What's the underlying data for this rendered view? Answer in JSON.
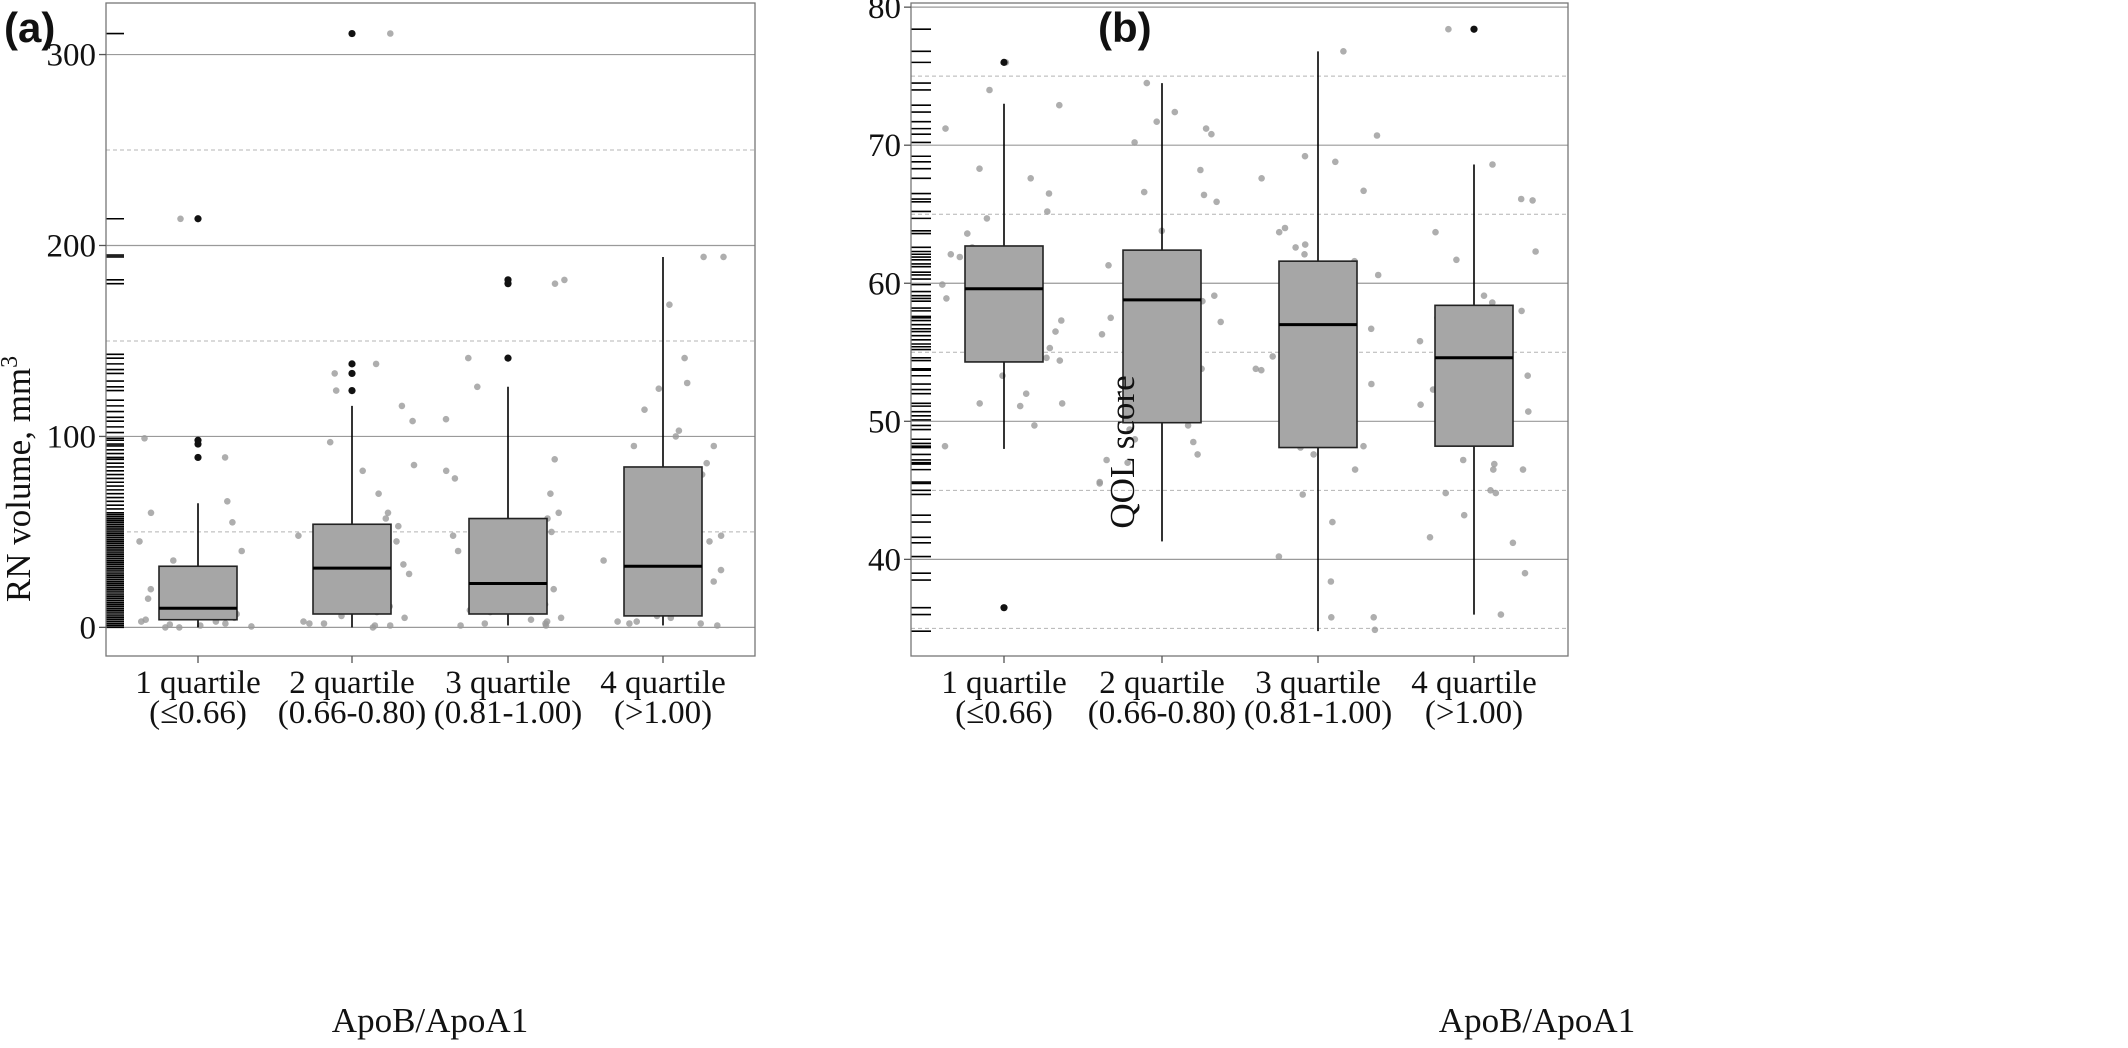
{
  "chart_data": [
    {
      "panel": "(a)",
      "type": "box",
      "title": "",
      "xlabel": "ApoB/ApoA1",
      "ylabel": "RN volume, mm",
      "ylabel_superscript": "3",
      "ylim": [
        -15,
        327
      ],
      "major_ticks": [
        0,
        100,
        200,
        300
      ],
      "minor_gridlines": [
        50,
        150,
        250
      ],
      "grid": true,
      "categories": [
        {
          "line1": "1 quartile",
          "line2": "(≤0.66)"
        },
        {
          "line1": "2 quartile",
          "line2": "(0.66-0.80)"
        },
        {
          "line1": "3 quartile",
          "line2": "(0.81-1.00)"
        },
        {
          "line1": "4 quartile",
          "line2": "(>1.00)"
        }
      ],
      "boxes": [
        {
          "whisker_low": 0,
          "q1": 4,
          "median": 10,
          "q3": 32,
          "whisker_high": 65,
          "outliers": [
            89,
            96,
            98,
            214
          ]
        },
        {
          "whisker_low": 0,
          "q1": 7,
          "median": 31,
          "q3": 54,
          "whisker_high": 116,
          "outliers": [
            124,
            133,
            138,
            311
          ]
        },
        {
          "whisker_low": 1,
          "q1": 7,
          "median": 23,
          "q3": 57,
          "whisker_high": 126,
          "outliers": [
            141,
            180,
            182
          ]
        },
        {
          "whisker_low": 1,
          "q1": 6,
          "median": 32,
          "q3": 84,
          "whisker_high": 194,
          "outliers": []
        }
      ],
      "jitter_points": [
        [
          0,
          1.5,
          0,
          99,
          89,
          40,
          4,
          2,
          15,
          8,
          5,
          12,
          22,
          30,
          1,
          3,
          6,
          9,
          18,
          25,
          60,
          66,
          55,
          45,
          35,
          20,
          10,
          3,
          214,
          0.5,
          7
        ],
        [
          2,
          48,
          57,
          45,
          133,
          124,
          116,
          82,
          30,
          20,
          11,
          8,
          3,
          1,
          0,
          45,
          38,
          28,
          14,
          6,
          2,
          97,
          60,
          85,
          138,
          108,
          70,
          27,
          5,
          1,
          311,
          40,
          18,
          53,
          33
        ],
        [
          2,
          180,
          141,
          126,
          82,
          60,
          45,
          35,
          12,
          8,
          3,
          1,
          88,
          109,
          57,
          48,
          40,
          30,
          22,
          16,
          9,
          5,
          2,
          182,
          78,
          70,
          50,
          20,
          10,
          4,
          1
        ],
        [
          114,
          141,
          100,
          86,
          62,
          40,
          20,
          8,
          3,
          1,
          194,
          169,
          103,
          70,
          48,
          38,
          30,
          24,
          14,
          6,
          2,
          65,
          80,
          95,
          125,
          128,
          194,
          95,
          35,
          5,
          2,
          45,
          3
        ]
      ],
      "rug_values": [
        0,
        1,
        2,
        3,
        4,
        5,
        6,
        7,
        8,
        9,
        10,
        11,
        12,
        13,
        14,
        15,
        16,
        17,
        18,
        19,
        20,
        21,
        22,
        23,
        24,
        25,
        26,
        27,
        28,
        29,
        30,
        31,
        32,
        33,
        34,
        35,
        36,
        37,
        38,
        39,
        40,
        41,
        42,
        43,
        44,
        45,
        46,
        47,
        48,
        49,
        50,
        51,
        52,
        53,
        54,
        55,
        56,
        57,
        58,
        59,
        60,
        62,
        64,
        66,
        68,
        70,
        72,
        74,
        76,
        78,
        80,
        82,
        84,
        86,
        88,
        89,
        91,
        93,
        95,
        96,
        98,
        99,
        102,
        105,
        108,
        110,
        113,
        116,
        119,
        124,
        126,
        129,
        133,
        135,
        138,
        141,
        143,
        180,
        182,
        194,
        195,
        214,
        311
      ]
    },
    {
      "panel": "(b)",
      "type": "box",
      "title": "",
      "xlabel": "ApoB/ApoA1",
      "ylabel": "QOL score",
      "ylim": [
        33,
        80.3
      ],
      "major_ticks": [
        40,
        50,
        60,
        70,
        80
      ],
      "minor_gridlines": [
        35,
        45,
        55,
        65,
        75
      ],
      "grid": true,
      "categories": [
        {
          "line1": "1 quartile",
          "line2": "(≤0.66)"
        },
        {
          "line1": "2 quartile",
          "line2": "(0.66-0.80)"
        },
        {
          "line1": "3 quartile",
          "line2": "(0.81-1.00)"
        },
        {
          "line1": "4 quartile",
          "line2": "(>1.00)"
        }
      ],
      "boxes": [
        {
          "whisker_low": 48,
          "q1": 54.3,
          "median": 59.6,
          "q3": 62.7,
          "whisker_high": 73,
          "outliers": [
            36.5,
            76
          ]
        },
        {
          "whisker_low": 41.3,
          "q1": 49.9,
          "median": 58.8,
          "q3": 62.4,
          "whisker_high": 74.5,
          "outliers": []
        },
        {
          "whisker_low": 34.8,
          "q1": 48.1,
          "median": 57,
          "q3": 61.6,
          "whisker_high": 76.8,
          "outliers": []
        },
        {
          "whisker_low": 36,
          "q1": 48.2,
          "median": 54.6,
          "q3": 58.4,
          "whisker_high": 68.6,
          "outliers": [
            78.4
          ]
        }
      ],
      "jitter_points": [
        [
          62.6,
          56.5,
          52,
          49.7,
          67.6,
          68.3,
          65.2,
          63.6,
          60.6,
          58.7,
          57.3,
          55.6,
          54.4,
          53.3,
          51.1,
          48.2,
          61.9,
          60.3,
          58.9,
          57.6,
          56.2,
          55.3,
          54.6,
          61.4,
          59.5,
          62.1,
          64.7,
          66.5,
          72.9,
          71.2,
          58.2,
          56.8,
          51.3,
          51.3,
          76,
          74,
          62.2,
          59.9
        ],
        [
          48.7,
          49.7,
          57.5,
          59.3,
          66.6,
          66.4,
          62,
          61.3,
          60.1,
          58.7,
          57.2,
          56.3,
          55.4,
          53.8,
          50.1,
          49.4,
          45.6,
          47,
          45.5,
          74.5,
          72.4,
          71.7,
          71.2,
          70.2,
          68.2,
          65.9,
          63.8,
          61.2,
          60.4,
          59.1,
          56.6,
          54.6,
          48.5,
          47.6,
          47.2,
          70.8
        ],
        [
          62.6,
          60.8,
          57.4,
          56.7,
          53.8,
          48.1,
          47.6,
          35.8,
          34.9,
          62.1,
          60.6,
          57,
          55.9,
          54.7,
          52.7,
          49.9,
          48.2,
          76.8,
          70.7,
          69.2,
          68.8,
          67.6,
          66.7,
          64,
          63.7,
          61.6,
          59.4,
          57.5,
          53.7,
          46.5,
          44.7,
          42.7,
          40.2,
          38.4,
          35.8,
          62.8,
          61
        ],
        [
          61.7,
          55.2,
          53.3,
          49.4,
          46.5,
          46.5,
          44.8,
          41.2,
          78.4,
          66,
          62.3,
          58,
          57.5,
          56.8,
          55.8,
          54.4,
          53.8,
          52.3,
          50.7,
          47.2,
          44.8,
          68.6,
          66.1,
          63.7,
          59.1,
          58.6,
          55.5,
          51.2,
          50.4,
          48.7,
          48.4,
          46.9,
          45,
          43.2,
          41.6,
          39,
          36
        ]
      ],
      "rug_values": [
        34.8,
        36,
        36.5,
        38.5,
        39,
        40.2,
        41.2,
        41.6,
        42.7,
        43.2,
        44.7,
        45,
        45.5,
        45.6,
        46.5,
        46.9,
        47,
        47.2,
        47.6,
        48.1,
        48.2,
        48.4,
        48.7,
        49.4,
        49.7,
        50.1,
        50.4,
        50.7,
        51.1,
        51.3,
        52,
        52.3,
        52.7,
        53.3,
        53.7,
        53.8,
        54.4,
        54.6,
        55.2,
        55.4,
        55.6,
        55.9,
        56.2,
        56.5,
        56.7,
        57,
        57.3,
        57.5,
        57.6,
        58,
        58.2,
        58.7,
        58.9,
        59.1,
        59.4,
        59.9,
        60.3,
        60.6,
        60.8,
        61.2,
        61.4,
        61.7,
        61.9,
        62.1,
        62.3,
        62.6,
        63.6,
        63.8,
        64.7,
        65.2,
        65.9,
        66.1,
        66.5,
        67.6,
        68.3,
        68.8,
        69.2,
        70.2,
        70.8,
        71.2,
        71.7,
        72.4,
        72.9,
        74,
        74.5,
        76,
        76.8,
        78.4
      ]
    }
  ]
}
